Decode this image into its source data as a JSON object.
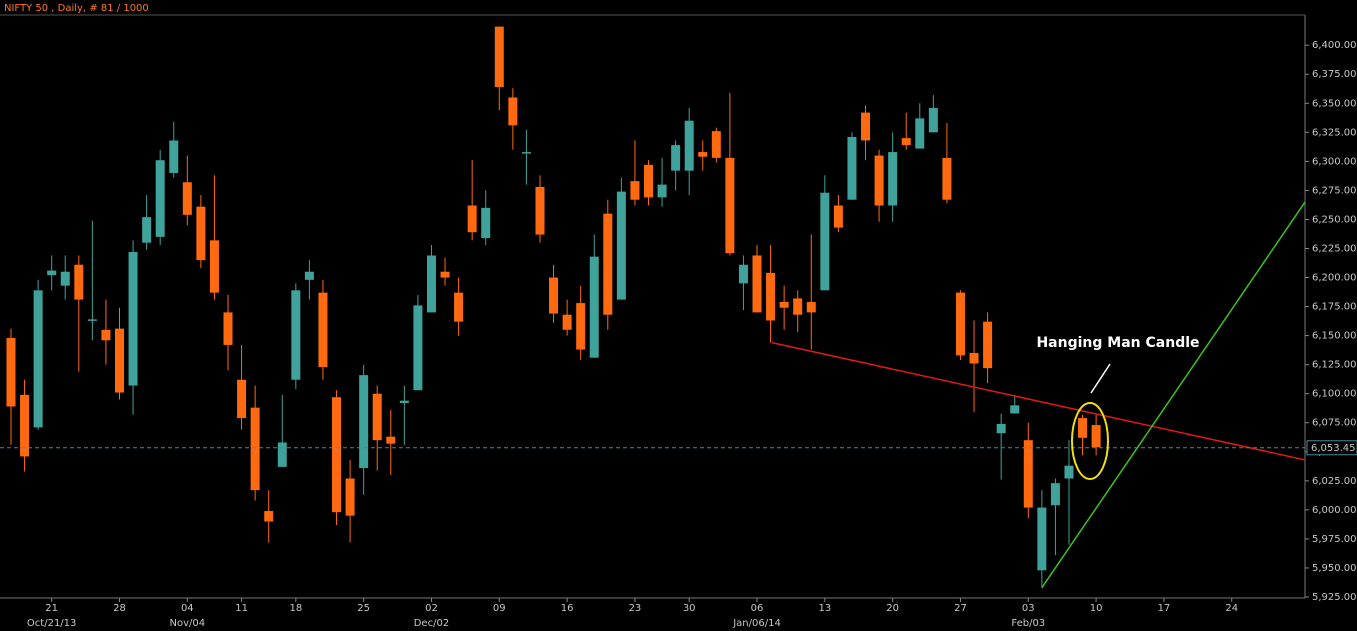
{
  "chart_data": {
    "type": "candlestick",
    "title": "NIFTY 50 , Daily, # 81 / 1000",
    "annotation": "Hanging Man Candle",
    "up_color": "#3fa39b",
    "down_color": "#ff6a10",
    "open": [
      6148,
      6099,
      6071,
      6202,
      6193,
      6211,
      6164,
      6155,
      6156,
      6107,
      6230,
      6235,
      6290,
      6282,
      6261,
      6232,
      6170,
      6112,
      6088,
      5999,
      6037,
      6112,
      6198,
      6187,
      6097,
      6027,
      6036,
      6100,
      6063,
      6092,
      6103,
      6170,
      6205,
      6187,
      6262,
      6234,
      6416,
      6355,
      6308,
      6278,
      6200,
      6168,
      6178,
      6131,
      6255,
      6181,
      6283,
      6297,
      6269,
      6292,
      6292,
      6308,
      6326,
      6303,
      6195,
      6219,
      6204,
      6179,
      6182,
      6179,
      6189,
      6262,
      6267,
      6342,
      6305,
      6262,
      6320,
      6311,
      6325,
      6303,
      6187,
      6135,
      6162,
      6066,
      6083,
      6060,
      5948,
      6004,
      6027,
      6079,
      6073
    ],
    "high": [
      6156,
      6112,
      6198,
      6219,
      6219,
      6219,
      6249,
      6181,
      6174,
      6232,
      6271,
      6310,
      6334,
      6305,
      6271,
      6288,
      6185,
      6142,
      6107,
      6017,
      6099,
      6195,
      6215,
      6198,
      6103,
      6043,
      6125,
      6107,
      6086,
      6107,
      6185,
      6228,
      6217,
      6200,
      6301,
      6275,
      6416,
      6363,
      6327,
      6288,
      6211,
      6181,
      6193,
      6237,
      6267,
      6286,
      6318,
      6301,
      6303,
      6318,
      6346,
      6318,
      6329,
      6359,
      6219,
      6228,
      6228,
      6193,
      6189,
      6237,
      6288,
      6271,
      6325,
      6348,
      6310,
      6325,
      6342,
      6350,
      6357,
      6333,
      6189,
      6163,
      6170,
      6083,
      6099,
      6075,
      6017,
      6027,
      6060,
      6082,
      6082
    ],
    "low": [
      6056,
      6033,
      6069,
      6189,
      6181,
      6119,
      6146,
      6125,
      6095,
      6082,
      6224,
      6228,
      6286,
      6245,
      6208,
      6181,
      6120,
      6069,
      6008,
      5972,
      6037,
      6104,
      6181,
      6112,
      5987,
      5972,
      6013,
      6034,
      6030,
      6056,
      6103,
      6170,
      6193,
      6150,
      6232,
      6228,
      6344,
      6310,
      6280,
      6230,
      6161,
      6150,
      6129,
      6131,
      6155,
      6181,
      6262,
      6262,
      6261,
      6275,
      6271,
      6292,
      6299,
      6219,
      6172,
      6170,
      6144,
      6155,
      6153,
      6138,
      6189,
      6239,
      6267,
      6301,
      6248,
      6248,
      6310,
      6311,
      6325,
      6264,
      6129,
      6084,
      6109,
      6026,
      6083,
      5993,
      5933,
      5961,
      5970,
      6047,
      6047
    ],
    "close": [
      6089,
      6046,
      6189,
      6206,
      6205,
      6181,
      6164,
      6146,
      6101,
      6222,
      6252,
      6301,
      6318,
      6254,
      6215,
      6187,
      6142,
      6079,
      6017,
      5990,
      6058,
      6189,
      6205,
      6123,
      5998,
      5995,
      6116,
      6060,
      6057,
      6094,
      6176,
      6219,
      6200,
      6162,
      6239,
      6260,
      6364,
      6331,
      6308,
      6237,
      6169,
      6155,
      6138,
      6218,
      6168,
      6274,
      6267,
      6269,
      6280,
      6314,
      6335,
      6304,
      6303,
      6221,
      6211,
      6170,
      6163,
      6174,
      6168,
      6170,
      6273,
      6243,
      6321,
      6318,
      6262,
      6308,
      6314,
      6337,
      6346,
      6267,
      6133,
      6126,
      6122,
      6074,
      6090,
      6002,
      6002,
      6023,
      6038,
      6062,
      6054
    ],
    "last_price": {
      "value": 6053.45,
      "label": "6,053.45"
    },
    "trendlines": [
      {
        "color": "#e01818",
        "x": [
          56.1,
          95.4
        ],
        "y": [
          6144,
          6043
        ]
      },
      {
        "color": "#3cc21e",
        "x": [
          76,
          95.4
        ],
        "y": [
          5933,
          6265
        ]
      }
    ],
    "xlim": [
      -0.81,
      95.4
    ],
    "ylim": [
      5925,
      6426
    ],
    "xticks": [
      {
        "value": 3,
        "label": "21"
      },
      {
        "value": 8,
        "label": "28"
      },
      {
        "value": 13,
        "label": "04"
      },
      {
        "value": 17,
        "label": "11"
      },
      {
        "value": 21,
        "label": "18"
      },
      {
        "value": 26,
        "label": "25"
      },
      {
        "value": 31,
        "label": "02"
      },
      {
        "value": 36,
        "label": "09"
      },
      {
        "value": 41,
        "label": "16"
      },
      {
        "value": 46,
        "label": "23"
      },
      {
        "value": 50,
        "label": "30"
      },
      {
        "value": 55,
        "label": "06"
      },
      {
        "value": 60,
        "label": "13"
      },
      {
        "value": 65,
        "label": "20"
      },
      {
        "value": 70,
        "label": "27"
      },
      {
        "value": 75,
        "label": "03"
      },
      {
        "value": 80,
        "label": "10"
      },
      {
        "value": 85,
        "label": "17"
      },
      {
        "value": 90,
        "label": "24"
      }
    ],
    "xticks_period": [
      {
        "value": 3,
        "label": "Oct/21/13"
      },
      {
        "value": 13,
        "label": "Nov/04"
      },
      {
        "value": 31,
        "label": "Dec/02"
      },
      {
        "value": 55,
        "label": "Jan/06/14"
      },
      {
        "value": 75,
        "label": "Feb/03"
      }
    ],
    "yticks": [
      {
        "value": 5925,
        "label": "5,925.00"
      },
      {
        "value": 5950,
        "label": "5,950.00"
      },
      {
        "value": 5975,
        "label": "5,975.00"
      },
      {
        "value": 6000,
        "label": "6,000.00"
      },
      {
        "value": 6025,
        "label": "6,025.00"
      },
      {
        "value": 6050,
        "label": "6,050.00"
      },
      {
        "value": 6075,
        "label": "6,075.00"
      },
      {
        "value": 6100,
        "label": "6,100.00"
      },
      {
        "value": 6125,
        "label": "6,125.00"
      },
      {
        "value": 6150,
        "label": "6,150.00"
      },
      {
        "value": 6175,
        "label": "6,175.00"
      },
      {
        "value": 6200,
        "label": "6,200.00"
      },
      {
        "value": 6225,
        "label": "6,225.00"
      },
      {
        "value": 6250,
        "label": "6,250.00"
      },
      {
        "value": 6275,
        "label": "6,275.00"
      },
      {
        "value": 6300,
        "label": "6,300.00"
      },
      {
        "value": 6325,
        "label": "6,325.00"
      },
      {
        "value": 6350,
        "label": "6,350.00"
      },
      {
        "value": 6375,
        "label": "6,375.00"
      },
      {
        "value": 6400,
        "label": "6,400.00"
      }
    ]
  }
}
